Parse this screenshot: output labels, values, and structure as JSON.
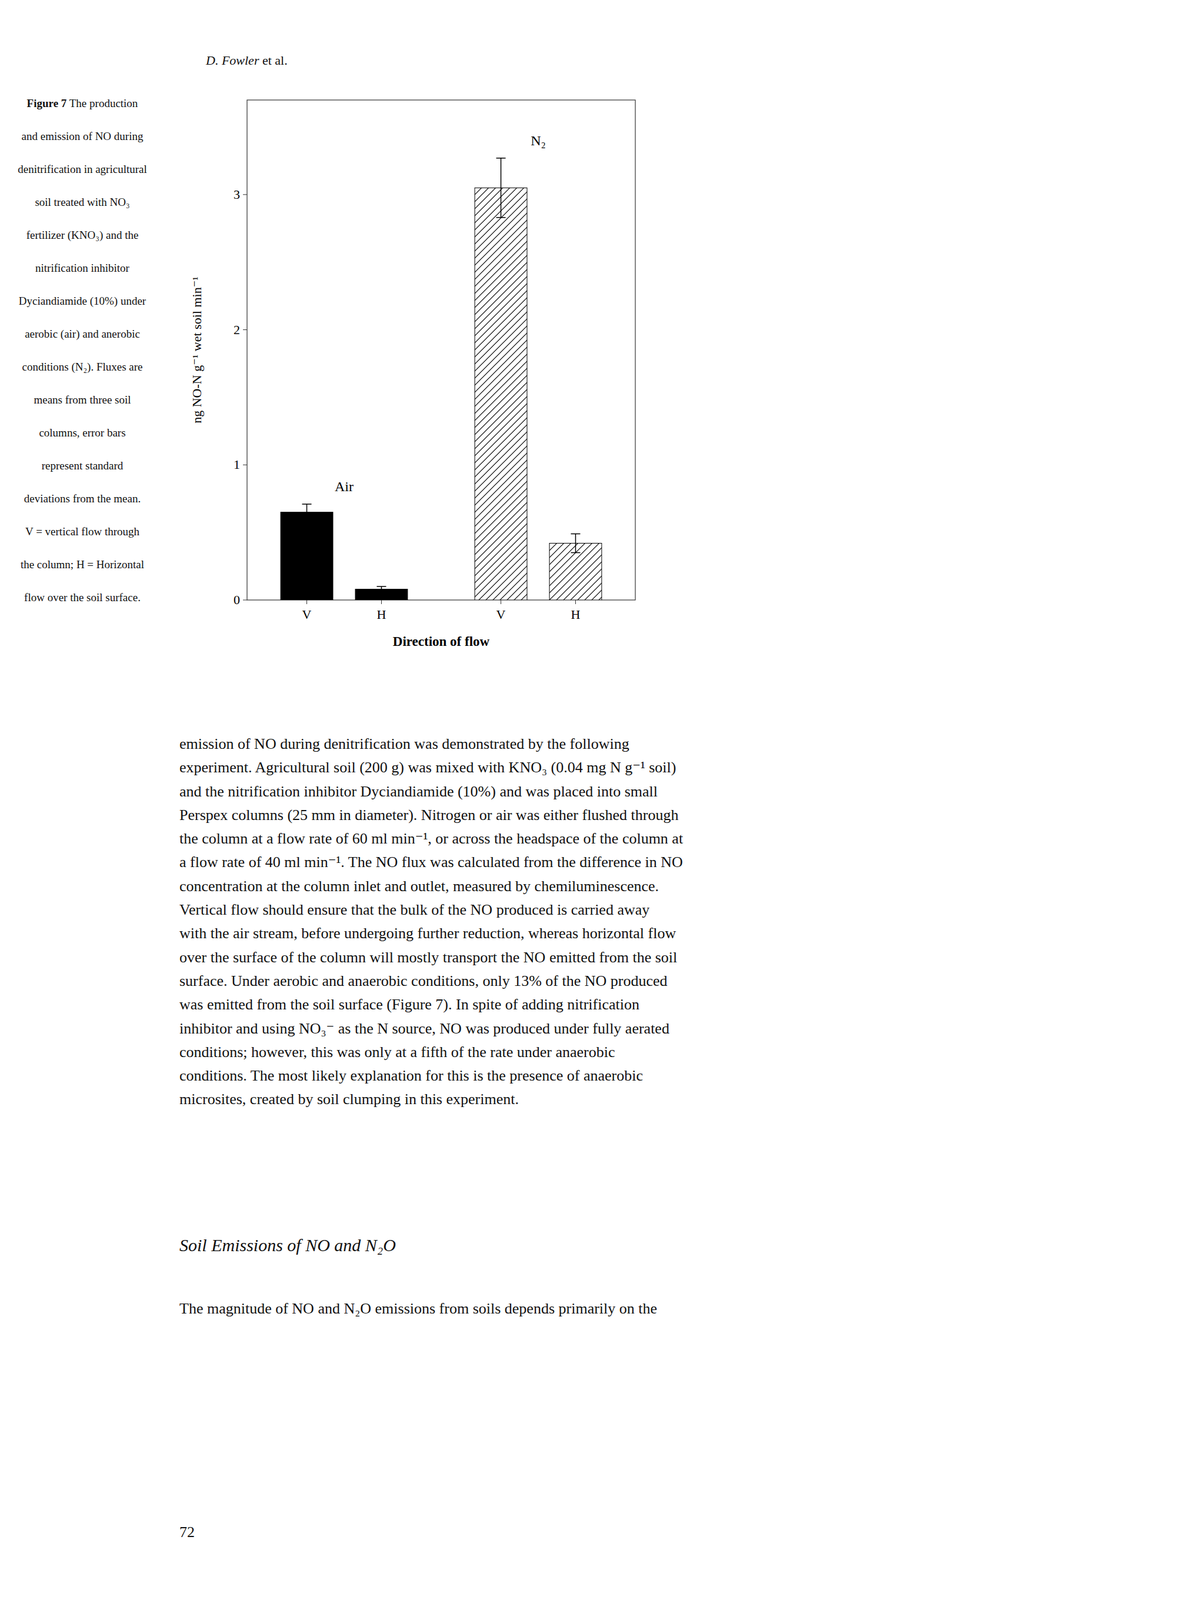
{
  "header": {
    "italic": "D. Fowler",
    "normal": "et al."
  },
  "chart_data": {
    "type": "bar",
    "categories": [
      "V",
      "H",
      "V",
      "H"
    ],
    "values": [
      0.65,
      0.08,
      3.05,
      0.42
    ],
    "errors": [
      0.06,
      0.02,
      0.22,
      0.07
    ],
    "colors": [
      "black",
      "black",
      "white",
      "white"
    ],
    "annotations": [
      "Air",
      "N₂"
    ],
    "xlabel": "Direction of flow",
    "ylabel": "ng NO-N g⁻¹ wet soil min⁻¹",
    "ylim": [
      0,
      3.7
    ],
    "yticks": [
      0,
      1,
      2,
      3
    ],
    "grid": false
  },
  "caption": {
    "label": "Figure 7",
    "lines": [
      "The production",
      "and emission of NO during",
      "denitrification in agricultural",
      "soil treated with NO₃",
      "fertilizer (KNO₃) and the",
      "nitrification inhibitor",
      "Dyciandiamide (10%) under",
      "aerobic (air) and anerobic",
      "conditions (N₂). Fluxes are",
      "means from three soil",
      "columns, error bars",
      "represent standard",
      "deviations from the mean.",
      "V = vertical flow through",
      "the column; H = Horizontal",
      "flow over the soil surface."
    ]
  },
  "body_lines": [
    "emission of NO during denitrification was demonstrated by the following",
    "experiment. Agricultural soil (200 g) was mixed with KNO₃ (0.04 mg N g⁻¹ soil)",
    "and the nitrification inhibitor Dyciandiamide (10%) and was placed into small",
    "Perspex columns (25 mm in diameter). Nitrogen or air was either flushed through",
    "the column at a flow rate of 60 ml min⁻¹, or across the headspace of the column at",
    "a flow rate of 40 ml min⁻¹. The NO flux was calculated from the difference in NO",
    "concentration at the column inlet and outlet, measured by chemiluminescence.",
    "Vertical flow should ensure that the bulk of the NO produced is carried away",
    "with the air stream, before undergoing further reduction, whereas horizontal flow",
    "over the surface of the column will mostly transport the NO emitted from the soil",
    "surface. Under aerobic and anaerobic conditions, only 13% of the NO produced",
    "was emitted from the soil surface (Figure 7). In spite of adding nitrification",
    "inhibitor and using NO₃⁻ as the N source, NO was produced under fully aerated",
    "conditions; however, this was only at a fifth of the rate under anaerobic",
    "conditions. The most likely explanation for this is the presence of anaerobic",
    "microsites, created by soil clumping in this experiment."
  ],
  "section_heading": "Soil Emissions of NO and N₂O",
  "section_text": "The magnitude of NO and N₂O emissions from soils depends primarily on the",
  "page_number": "72"
}
